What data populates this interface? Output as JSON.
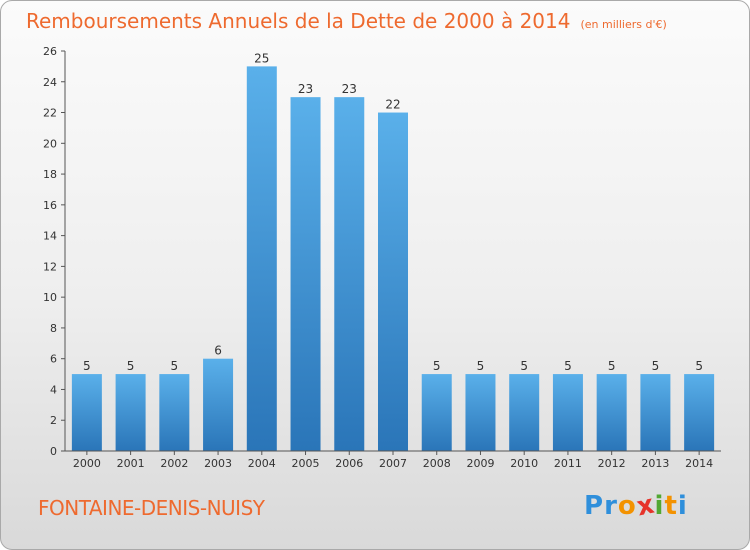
{
  "header": {
    "title": "Remboursements Annuels de la Dette de 2000 à 2014",
    "subtitle": "(en milliers d'€)"
  },
  "footer": {
    "place": "FONTAINE-DENIS-NUISY",
    "logo_letters": [
      "P",
      "r",
      "o",
      "x",
      "i",
      "t",
      "i"
    ]
  },
  "colors": {
    "title": "#ee6a2f",
    "bar_top": "#5ab0ea",
    "bar_bottom": "#2a75b8",
    "logo": [
      "#2f8fdb",
      "#2f8fdb",
      "#f39200",
      "#e6332a",
      "#52a833",
      "#f39200",
      "#2f8fdb"
    ]
  },
  "chart_data": {
    "type": "bar",
    "categories": [
      "2000",
      "2001",
      "2002",
      "2003",
      "2004",
      "2005",
      "2006",
      "2007",
      "2008",
      "2009",
      "2010",
      "2011",
      "2012",
      "2013",
      "2014"
    ],
    "values": [
      5,
      5,
      5,
      6,
      25,
      23,
      23,
      22,
      5,
      5,
      5,
      5,
      5,
      5,
      5
    ],
    "data_labels": [
      "5",
      "5",
      "5",
      "6",
      "25",
      "23",
      "23",
      "22",
      "5",
      "5",
      "5",
      "5",
      "5",
      "5",
      "5"
    ],
    "ylim": [
      0,
      26
    ],
    "yticks": [
      0,
      2,
      4,
      6,
      8,
      10,
      12,
      14,
      16,
      18,
      20,
      22,
      24,
      26
    ],
    "xlabel": "",
    "ylabel": "",
    "grid": false,
    "legend": "none"
  }
}
